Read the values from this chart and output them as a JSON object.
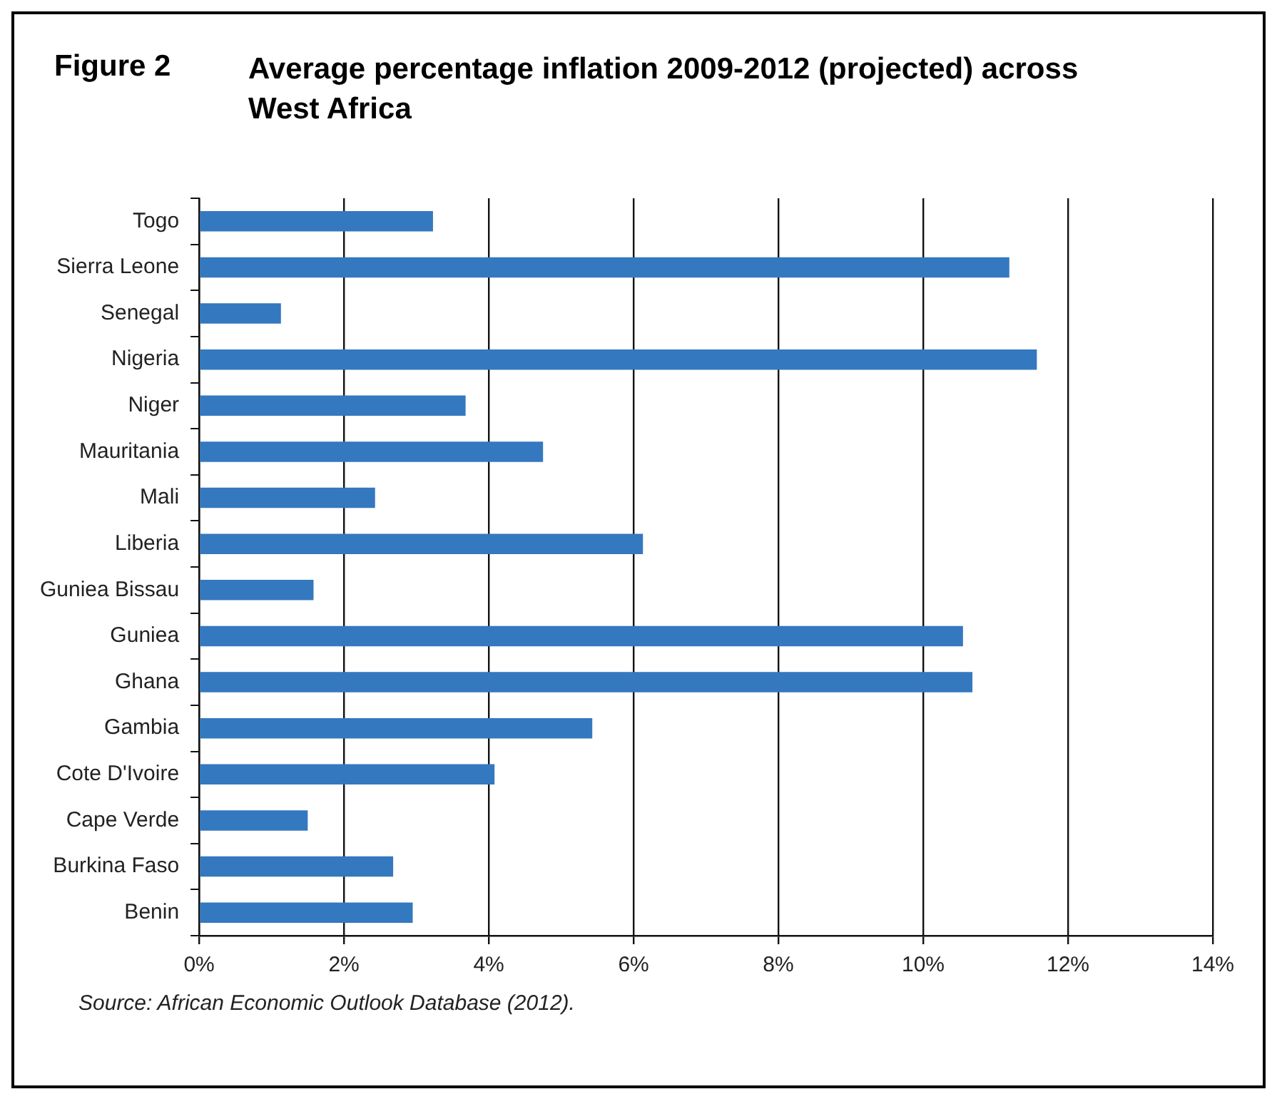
{
  "chart_data": {
    "type": "bar",
    "orientation": "horizontal",
    "title": "Figure 2",
    "subtitle": "Average percentage inflation 2009-2012 (projected) across West Africa",
    "categories": [
      "Togo",
      "Sierra Leone",
      "Senegal",
      "Nigeria",
      "Niger",
      "Mauritania",
      "Mali",
      "Liberia",
      "Guniea Bissau",
      "Guniea",
      "Ghana",
      "Gambia",
      "Cote D'Ivoire",
      "Cape Verde",
      "Burkina Faso",
      "Benin"
    ],
    "values": [
      3.23,
      11.19,
      1.13,
      11.57,
      3.68,
      4.75,
      2.43,
      6.13,
      1.58,
      10.55,
      10.68,
      5.43,
      4.08,
      1.5,
      2.68,
      2.95
    ],
    "color": "#3478bf",
    "xlim": [
      0,
      14
    ],
    "xticks": [
      {
        "value": 0,
        "label": "0%"
      },
      {
        "value": 2,
        "label": "2%"
      },
      {
        "value": 4,
        "label": "4%"
      },
      {
        "value": 6,
        "label": "6%"
      },
      {
        "value": 8,
        "label": "8%"
      },
      {
        "value": 10,
        "label": "10%"
      },
      {
        "value": 12,
        "label": "12%"
      },
      {
        "value": 14,
        "label": "14%"
      }
    ],
    "grid": "x",
    "legend": false,
    "annotations": [
      "Source: African Economic Outlook Database (2012)."
    ]
  }
}
